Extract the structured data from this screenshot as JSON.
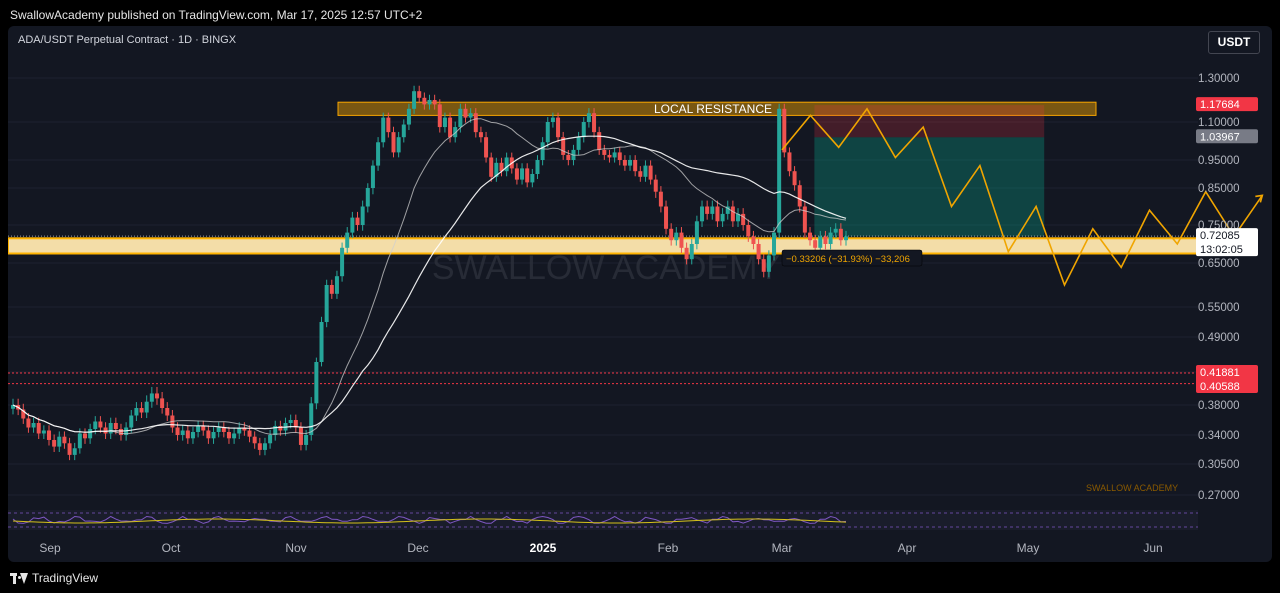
{
  "header": {
    "published": "SwallowAcademy published on TradingView.com, Mar 17, 2025 12:57 UTC+2"
  },
  "symbol_line": "ADA/USDT Perpetual Contract · 1D · BINGX",
  "currency": "USDT",
  "footer": {
    "brand": "TradingView"
  },
  "colors": {
    "bg": "#131722",
    "up": "#26a69a",
    "down": "#ef5350",
    "resistance": "#f7a600",
    "projection": "#f0a500",
    "ma_fast": "#cfcfcf",
    "ma_slow": "#ffffff"
  },
  "chart_data": {
    "type": "candlestick",
    "x_ticks": [
      "Sep",
      "Oct",
      "Nov",
      "Dec",
      "2025",
      "Feb",
      "Mar",
      "Apr",
      "May",
      "Jun"
    ],
    "y_ticks": [
      "1.30000",
      "1.10000",
      "0.95000",
      "0.85000",
      "0.75000",
      "0.65000",
      "0.55000",
      "0.49000",
      "0.38000",
      "0.34000",
      "0.30500",
      "0.27000"
    ],
    "price_labels": [
      {
        "text": "1.17684",
        "value": 1.17684,
        "color": "#f23645"
      },
      {
        "text": "1.03967",
        "value": 1.03967,
        "color": "#787b86"
      },
      {
        "text": "0.72085",
        "value": 0.72085,
        "color": "#ffffff",
        "sub": "13:02:05"
      },
      {
        "text": "0.41881",
        "value": 0.41881,
        "color": "#f23645",
        "sub": "0.40588"
      }
    ],
    "resistance_label": "LOCAL RESISTANCE",
    "resistance_zone": [
      1.13,
      1.19
    ],
    "support_zone": [
      0.675,
      0.715
    ],
    "horizontal_lines": [
      0.41881,
      0.40588
    ],
    "measure_label": "−0.33206 (−31.93%) −33,206",
    "watermark": "SWALLOW ACADEMY",
    "signature": "SWALLOW ACADEMY",
    "position": {
      "entry": 0.72,
      "target": 1.03967,
      "stop": 1.17684,
      "start": "Mar 9",
      "end": "May 5"
    },
    "projection": [
      [
        "Mar 1",
        0.99
      ],
      [
        "Mar 8",
        1.13
      ],
      [
        "Mar 15",
        1.0
      ],
      [
        "Mar 22",
        1.16
      ],
      [
        "Mar 29",
        0.96
      ],
      [
        "Apr 5",
        1.08
      ],
      [
        "Apr 12",
        0.8
      ],
      [
        "Apr 19",
        0.93
      ],
      [
        "Apr 26",
        0.68
      ],
      [
        "May 3",
        0.8
      ],
      [
        "May 10",
        0.6
      ],
      [
        "May 17",
        0.74
      ],
      [
        "May 24",
        0.64
      ],
      [
        "May 31",
        0.79
      ],
      [
        "Jun 7",
        0.7
      ],
      [
        "Jun 14",
        0.84
      ],
      [
        "Jun 21",
        0.72
      ],
      [
        "Jun 28",
        0.83
      ]
    ],
    "candles": [
      [
        0.375,
        0.38
      ],
      [
        0.38,
        0.374
      ],
      [
        0.374,
        0.362
      ],
      [
        0.362,
        0.35
      ],
      [
        0.35,
        0.356
      ],
      [
        0.356,
        0.342
      ],
      [
        0.342,
        0.346
      ],
      [
        0.346,
        0.334
      ],
      [
        0.334,
        0.326
      ],
      [
        0.326,
        0.338
      ],
      [
        0.338,
        0.33
      ],
      [
        0.33,
        0.316
      ],
      [
        0.316,
        0.324
      ],
      [
        0.324,
        0.342
      ],
      [
        0.342,
        0.336
      ],
      [
        0.336,
        0.348
      ],
      [
        0.348,
        0.358
      ],
      [
        0.358,
        0.35
      ],
      [
        0.35,
        0.342
      ],
      [
        0.342,
        0.356
      ],
      [
        0.356,
        0.348
      ],
      [
        0.348,
        0.34
      ],
      [
        0.34,
        0.35
      ],
      [
        0.35,
        0.366
      ],
      [
        0.366,
        0.376
      ],
      [
        0.376,
        0.37
      ],
      [
        0.37,
        0.384
      ],
      [
        0.384,
        0.394
      ],
      [
        0.394,
        0.388
      ],
      [
        0.388,
        0.376
      ],
      [
        0.376,
        0.366
      ],
      [
        0.366,
        0.35
      ],
      [
        0.35,
        0.34
      ],
      [
        0.34,
        0.346
      ],
      [
        0.346,
        0.336
      ],
      [
        0.336,
        0.344
      ],
      [
        0.344,
        0.352
      ],
      [
        0.352,
        0.346
      ],
      [
        0.346,
        0.336
      ],
      [
        0.336,
        0.344
      ],
      [
        0.344,
        0.35
      ],
      [
        0.35,
        0.344
      ],
      [
        0.344,
        0.336
      ],
      [
        0.336,
        0.342
      ],
      [
        0.342,
        0.35
      ],
      [
        0.35,
        0.346
      ],
      [
        0.346,
        0.338
      ],
      [
        0.338,
        0.33
      ],
      [
        0.33,
        0.322
      ],
      [
        0.322,
        0.33
      ],
      [
        0.33,
        0.34
      ],
      [
        0.34,
        0.352
      ],
      [
        0.352,
        0.346
      ],
      [
        0.346,
        0.356
      ],
      [
        0.356,
        0.36
      ],
      [
        0.36,
        0.35
      ],
      [
        0.35,
        0.328
      ],
      [
        0.328,
        0.34
      ],
      [
        0.34,
        0.382
      ],
      [
        0.382,
        0.44
      ],
      [
        0.44,
        0.52
      ],
      [
        0.52,
        0.6
      ],
      [
        0.6,
        0.58
      ],
      [
        0.58,
        0.62
      ],
      [
        0.62,
        0.69
      ],
      [
        0.69,
        0.73
      ],
      [
        0.73,
        0.77
      ],
      [
        0.77,
        0.75
      ],
      [
        0.75,
        0.8
      ],
      [
        0.8,
        0.85
      ],
      [
        0.85,
        0.93
      ],
      [
        0.93,
        1.02
      ],
      [
        1.02,
        1.12
      ],
      [
        1.12,
        1.06
      ],
      [
        1.06,
        0.98
      ],
      [
        0.98,
        1.04
      ],
      [
        1.04,
        1.09
      ],
      [
        1.09,
        1.16
      ],
      [
        1.16,
        1.24
      ],
      [
        1.24,
        1.21
      ],
      [
        1.21,
        1.18
      ],
      [
        1.18,
        1.2
      ],
      [
        1.2,
        1.18
      ],
      [
        1.18,
        1.08
      ],
      [
        1.08,
        1.12
      ],
      [
        1.12,
        1.04
      ],
      [
        1.04,
        1.08
      ],
      [
        1.08,
        1.16
      ],
      [
        1.16,
        1.12
      ],
      [
        1.12,
        1.14
      ],
      [
        1.14,
        1.06
      ],
      [
        1.06,
        1.04
      ],
      [
        1.04,
        0.96
      ],
      [
        0.96,
        0.89
      ],
      [
        0.89,
        0.94
      ],
      [
        0.94,
        0.91
      ],
      [
        0.91,
        0.96
      ],
      [
        0.96,
        0.92
      ],
      [
        0.92,
        0.88
      ],
      [
        0.88,
        0.92
      ],
      [
        0.92,
        0.87
      ],
      [
        0.87,
        0.9
      ],
      [
        0.9,
        0.95
      ],
      [
        0.95,
        1.02
      ],
      [
        1.02,
        1.1
      ],
      [
        1.1,
        1.12
      ],
      [
        1.12,
        1.04
      ],
      [
        1.04,
        0.97
      ],
      [
        0.97,
        0.95
      ],
      [
        0.95,
        0.99
      ],
      [
        0.99,
        1.04
      ],
      [
        1.04,
        1.1
      ],
      [
        1.1,
        1.14
      ],
      [
        1.14,
        1.06
      ],
      [
        1.06,
        0.99
      ],
      [
        0.99,
        0.97
      ],
      [
        0.97,
        0.96
      ],
      [
        0.96,
        0.98
      ],
      [
        0.98,
        0.95
      ],
      [
        0.95,
        0.93
      ],
      [
        0.93,
        0.95
      ],
      [
        0.95,
        0.91
      ],
      [
        0.91,
        0.89
      ],
      [
        0.89,
        0.93
      ],
      [
        0.93,
        0.88
      ],
      [
        0.88,
        0.84
      ],
      [
        0.84,
        0.8
      ],
      [
        0.8,
        0.74
      ],
      [
        0.74,
        0.71
      ],
      [
        0.71,
        0.73
      ],
      [
        0.73,
        0.69
      ],
      [
        0.69,
        0.66
      ],
      [
        0.66,
        0.7
      ],
      [
        0.7,
        0.76
      ],
      [
        0.76,
        0.8
      ],
      [
        0.8,
        0.78
      ],
      [
        0.78,
        0.8
      ],
      [
        0.8,
        0.76
      ],
      [
        0.76,
        0.78
      ],
      [
        0.78,
        0.8
      ],
      [
        0.8,
        0.76
      ],
      [
        0.76,
        0.78
      ],
      [
        0.78,
        0.75
      ],
      [
        0.75,
        0.72
      ],
      [
        0.72,
        0.7
      ],
      [
        0.7,
        0.66
      ],
      [
        0.66,
        0.63
      ],
      [
        0.63,
        0.67
      ],
      [
        0.67,
        0.73
      ],
      [
        0.73,
        1.16
      ],
      [
        1.16,
        0.98
      ],
      [
        0.98,
        0.91
      ],
      [
        0.91,
        0.86
      ],
      [
        0.86,
        0.8
      ],
      [
        0.8,
        0.73
      ],
      [
        0.73,
        0.71
      ],
      [
        0.71,
        0.69
      ],
      [
        0.69,
        0.72
      ],
      [
        0.72,
        0.7
      ],
      [
        0.7,
        0.73
      ],
      [
        0.73,
        0.74
      ],
      [
        0.74,
        0.71
      ],
      [
        0.71,
        0.72
      ]
    ]
  }
}
